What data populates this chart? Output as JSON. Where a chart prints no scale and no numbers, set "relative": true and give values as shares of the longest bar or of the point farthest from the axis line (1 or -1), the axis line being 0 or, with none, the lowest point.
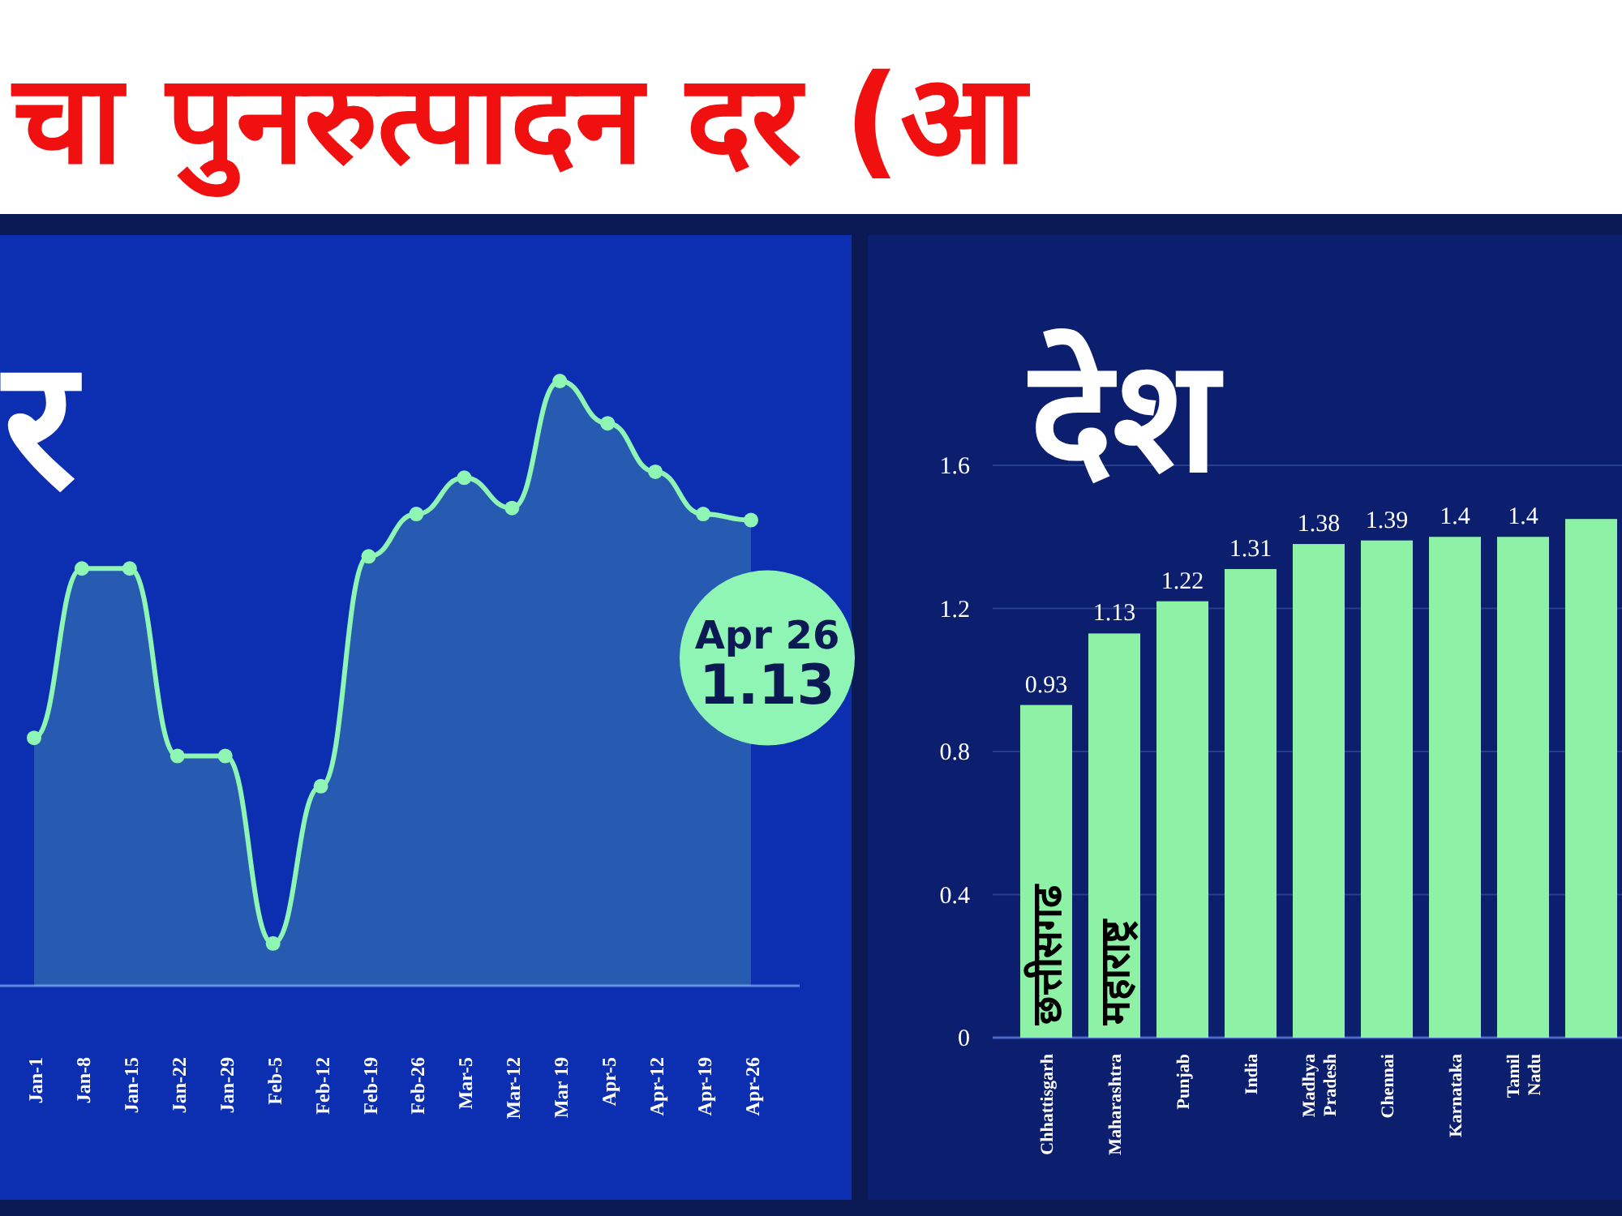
{
  "chart_data": [
    {
      "type": "area",
      "title": "चा पुनरुत्पादन दर (आ",
      "subtitle": "र",
      "relative": true,
      "marker": "circle",
      "categories": [
        "Jan-1",
        "Jan-8",
        "Jan-15",
        "Jan-22",
        "Jan-29",
        "Feb-5",
        "Feb-12",
        "Feb-19",
        "Feb-26",
        "Mar-5",
        "Mar-12",
        "Mar 19",
        "Apr-5",
        "Apr-12",
        "Apr-19",
        "Apr-26"
      ],
      "series": [
        {
          "color": "#8ff5b4",
          "values": [
            0.41,
            0.69,
            0.69,
            0.38,
            0.38,
            0.07,
            0.33,
            0.71,
            0.78,
            0.84,
            0.79,
            1.0,
            0.93,
            0.85,
            0.78,
            0.77
          ]
        }
      ],
      "annotations": [
        {
          "text": "Apr 26\n1.13",
          "x": "Apr-26",
          "y": 0.77
        }
      ]
    },
    {
      "type": "bar",
      "title": "देश",
      "grid": "y",
      "ylim": [
        0,
        1.6
      ],
      "yticks": [
        0,
        0.4,
        0.8,
        1.2,
        1.6
      ],
      "categories": [
        "Chhattisgarh",
        "Maharashtra",
        "Punjab",
        "India",
        "Madhya Pradesh",
        "Chennai",
        "Karnataka",
        "Tamil Nadu",
        null
      ],
      "series": [
        {
          "color": "#8ef2a6",
          "values": [
            0.93,
            1.13,
            1.22,
            1.31,
            1.38,
            1.39,
            1.4,
            1.4,
            1.45
          ],
          "value_labels": [
            "0.93",
            "1.13",
            "1.22",
            "1.31",
            "1.38",
            "1.39",
            "1.4",
            "1.4",
            null
          ]
        }
      ],
      "annotations": [
        "छत्तीसगढ",
        "महाराष्ट्र"
      ]
    }
  ]
}
